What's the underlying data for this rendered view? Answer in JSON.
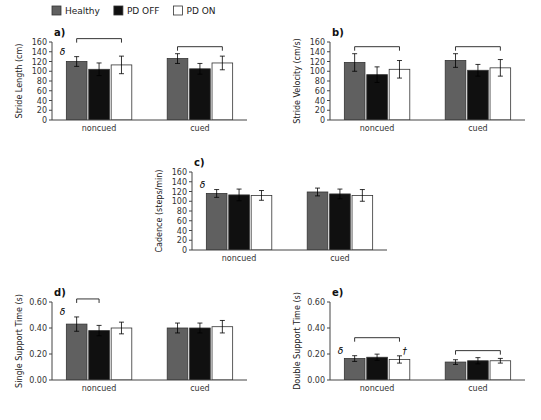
{
  "chart_data": [
    {
      "type": "bar",
      "title": "a)",
      "y_label": "Stride Length (cm)",
      "categories": [
        "noncued",
        "cued"
      ],
      "series": [
        {
          "name": "Healthy",
          "color": "#606060",
          "values": [
            120,
            126
          ],
          "errors": [
            10,
            10
          ]
        },
        {
          "name": "PD OFF",
          "color": "#101010",
          "values": [
            104,
            105
          ],
          "errors": [
            13,
            11
          ]
        },
        {
          "name": "PD ON",
          "color": "#ffffff",
          "values": [
            113,
            117
          ],
          "errors": [
            18,
            14
          ]
        }
      ],
      "ylim": [
        0,
        160
      ],
      "yticks": [
        0,
        20,
        40,
        60,
        80,
        100,
        120,
        140,
        160
      ],
      "grid": false,
      "legend": "upper left",
      "annotations": [
        {
          "text": "δ",
          "category": "noncued",
          "series": "Healthy"
        }
      ]
    },
    {
      "type": "bar",
      "title": "b)",
      "y_label": "Stride Velocity (cm/s)",
      "categories": [
        "noncued",
        "cued"
      ],
      "series": [
        {
          "name": "Healthy",
          "color": "#606060",
          "values": [
            118,
            122
          ],
          "errors": [
            18,
            14
          ]
        },
        {
          "name": "PD OFF",
          "color": "#101010",
          "values": [
            93,
            102
          ],
          "errors": [
            16,
            12
          ]
        },
        {
          "name": "PD ON",
          "color": "#ffffff",
          "values": [
            104,
            107
          ],
          "errors": [
            18,
            17
          ]
        }
      ],
      "ylim": [
        0,
        160
      ],
      "yticks": [
        0,
        20,
        40,
        60,
        80,
        100,
        120,
        140,
        160
      ],
      "grid": false
    },
    {
      "type": "bar",
      "title": "c)",
      "y_label": "Cadence (steps/min)",
      "categories": [
        "noncued",
        "cued"
      ],
      "series": [
        {
          "name": "Healthy",
          "color": "#606060",
          "values": [
            116,
            119
          ],
          "errors": [
            8,
            8
          ]
        },
        {
          "name": "PD OFF",
          "color": "#101010",
          "values": [
            113,
            115
          ],
          "errors": [
            12,
            10
          ]
        },
        {
          "name": "PD ON",
          "color": "#ffffff",
          "values": [
            112,
            112
          ],
          "errors": [
            10,
            12
          ]
        }
      ],
      "ylim": [
        0,
        160
      ],
      "yticks": [
        0,
        20,
        40,
        60,
        80,
        100,
        120,
        140,
        160
      ],
      "grid": false,
      "annotations": [
        {
          "text": "δ",
          "category": "noncued",
          "series": "Healthy"
        }
      ]
    },
    {
      "type": "bar",
      "title": "d)",
      "y_label": "Single Support Time (s)",
      "categories": [
        "noncued",
        "cued"
      ],
      "series": [
        {
          "name": "Healthy",
          "color": "#606060",
          "values": [
            0.43,
            0.4
          ],
          "errors": [
            0.055,
            0.038
          ]
        },
        {
          "name": "PD OFF",
          "color": "#101010",
          "values": [
            0.38,
            0.4
          ],
          "errors": [
            0.04,
            0.038
          ]
        },
        {
          "name": "PD ON",
          "color": "#ffffff",
          "values": [
            0.4,
            0.41
          ],
          "errors": [
            0.045,
            0.048
          ]
        }
      ],
      "ylim": [
        0,
        0.6
      ],
      "yticks": [
        {
          "value": 0,
          "label": "0.00"
        },
        {
          "value": 0.2,
          "label": "0.20"
        },
        {
          "value": 0.4,
          "label": "0.40"
        },
        {
          "value": 0.6,
          "label": "0.60"
        }
      ],
      "grid": false,
      "annotations": [
        {
          "text": "δ",
          "category": "noncued",
          "series": "Healthy"
        }
      ]
    },
    {
      "type": "bar",
      "title": "e)",
      "y_label": "Double Support Time (s)",
      "categories": [
        "noncued",
        "cued"
      ],
      "series": [
        {
          "name": "Healthy",
          "color": "#606060",
          "values": [
            0.165,
            0.138
          ],
          "errors": [
            0.022,
            0.018
          ]
        },
        {
          "name": "PD OFF",
          "color": "#101010",
          "values": [
            0.175,
            0.148
          ],
          "errors": [
            0.024,
            0.024
          ]
        },
        {
          "name": "PD ON",
          "color": "#ffffff",
          "values": [
            0.158,
            0.148
          ],
          "errors": [
            0.028,
            0.018
          ]
        }
      ],
      "ylim": [
        0,
        0.6
      ],
      "yticks": [
        {
          "value": 0,
          "label": "0.00"
        },
        {
          "value": 0.2,
          "label": "0.20"
        },
        {
          "value": 0.4,
          "label": "0.40"
        },
        {
          "value": 0.6,
          "label": "0.60"
        }
      ],
      "grid": false,
      "annotations": [
        {
          "text": "δ",
          "category": "noncued",
          "series": "Healthy"
        },
        {
          "text": "†",
          "category": "noncued",
          "series": "PD ON"
        }
      ]
    }
  ]
}
